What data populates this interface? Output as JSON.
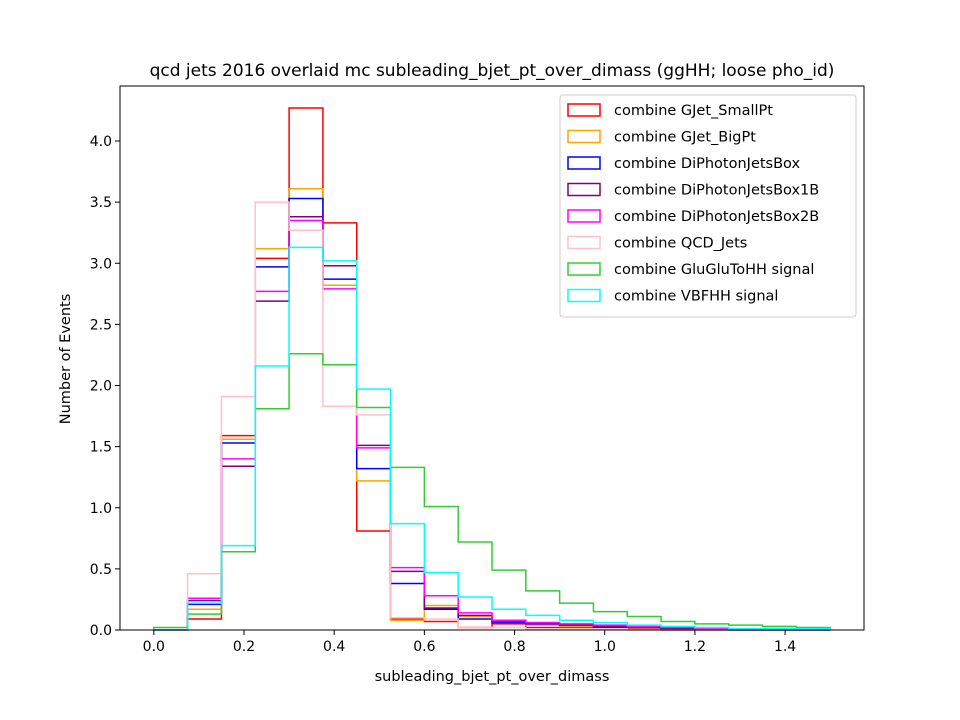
{
  "chart_data": {
    "type": "histogram",
    "title": "qcd jets 2016 overlaid mc subleading_bjet_pt_over_dimass (ggHH; loose pho_id)",
    "xlabel": "subleading_bjet_pt_over_dimass",
    "ylabel": "Number of Events",
    "xlim": [
      -0.075,
      1.575
    ],
    "ylim": [
      0,
      4.45
    ],
    "xticks": [
      0.0,
      0.2,
      0.4,
      0.6,
      0.8,
      1.0,
      1.2,
      1.4
    ],
    "xtick_labels": [
      "0.0",
      "0.2",
      "0.4",
      "0.6",
      "0.8",
      "1.0",
      "1.2",
      "1.4"
    ],
    "yticks": [
      0.0,
      0.5,
      1.0,
      1.5,
      2.0,
      2.5,
      3.0,
      3.5,
      4.0
    ],
    "ytick_labels": [
      "0.0",
      "0.5",
      "1.0",
      "1.5",
      "2.0",
      "2.5",
      "3.0",
      "3.5",
      "4.0"
    ],
    "grid": false,
    "legend_position": "top-right",
    "bin_edges": [
      0.0,
      0.075,
      0.15,
      0.225,
      0.3,
      0.375,
      0.45,
      0.525,
      0.6,
      0.675,
      0.75,
      0.825,
      0.9,
      0.975,
      1.05,
      1.125,
      1.2,
      1.275,
      1.35,
      1.425,
      1.5
    ],
    "series": [
      {
        "name": "combine GJet_SmallPt",
        "color": "#ff0000",
        "values": [
          0.0,
          0.09,
          1.59,
          3.04,
          4.27,
          3.33,
          0.81,
          0.09,
          0.07,
          0.02,
          0.05,
          0.02,
          0.02,
          0.01,
          0.01,
          0.0,
          0.0,
          0.0,
          0.0,
          0.0
        ]
      },
      {
        "name": "combine GJet_BigPt",
        "color": "#ffa500",
        "values": [
          0.0,
          0.17,
          1.56,
          3.12,
          3.61,
          2.82,
          1.22,
          0.08,
          0.2,
          0.11,
          0.06,
          0.04,
          0.03,
          0.02,
          0.01,
          0.0,
          0.0,
          0.0,
          0.0,
          0.0
        ]
      },
      {
        "name": "combine DiPhotonJetsBox",
        "color": "#0000ff",
        "values": [
          0.0,
          0.21,
          1.53,
          2.97,
          3.53,
          2.87,
          1.32,
          0.38,
          0.17,
          0.09,
          0.06,
          0.05,
          0.04,
          0.02,
          0.02,
          0.01,
          0.01,
          0.0,
          0.0,
          0.0
        ]
      },
      {
        "name": "combine DiPhotonJetsBox1B",
        "color": "#800080",
        "values": [
          0.0,
          0.24,
          1.34,
          2.69,
          3.38,
          2.98,
          1.51,
          0.48,
          0.18,
          0.12,
          0.07,
          0.06,
          0.04,
          0.03,
          0.02,
          0.01,
          0.01,
          0.0,
          0.0,
          0.0
        ]
      },
      {
        "name": "combine DiPhotonJetsBox2B",
        "color": "#ff00ff",
        "values": [
          0.0,
          0.26,
          1.4,
          2.77,
          3.35,
          2.79,
          1.49,
          0.51,
          0.28,
          0.14,
          0.08,
          0.06,
          0.05,
          0.04,
          0.03,
          0.02,
          0.01,
          0.0,
          0.0,
          0.0
        ]
      },
      {
        "name": "combine QCD_Jets",
        "color": "#ffc0cb",
        "values": [
          0.0,
          0.46,
          1.91,
          3.5,
          3.27,
          1.83,
          1.76,
          0.1,
          0.09,
          0.02,
          0.02,
          0.01,
          0.01,
          0.01,
          0.0,
          0.0,
          0.0,
          0.0,
          0.0,
          0.0
        ]
      },
      {
        "name": "combine GluGluToHH signal",
        "color": "#32cd32",
        "values": [
          0.02,
          0.13,
          0.64,
          1.81,
          2.26,
          2.17,
          1.82,
          1.33,
          1.01,
          0.72,
          0.49,
          0.32,
          0.22,
          0.15,
          0.11,
          0.07,
          0.05,
          0.04,
          0.03,
          0.02
        ]
      },
      {
        "name": "combine VBFHH signal",
        "color": "#00ffff",
        "values": [
          0.0,
          0.22,
          0.69,
          2.16,
          3.13,
          3.02,
          1.97,
          0.87,
          0.47,
          0.27,
          0.17,
          0.12,
          0.08,
          0.06,
          0.04,
          0.03,
          0.02,
          0.01,
          0.01,
          0.01
        ]
      }
    ]
  }
}
